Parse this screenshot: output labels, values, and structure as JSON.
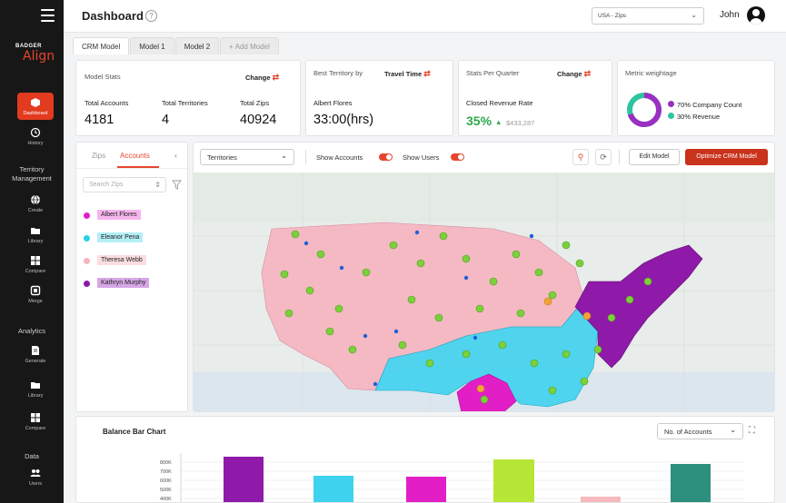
{
  "sidebar": {
    "brand_top": "BADGER",
    "brand_main": "Align",
    "items": [
      {
        "label": "Dashboard",
        "icon": "cube-icon"
      },
      {
        "label": "History",
        "icon": "history-icon"
      },
      {
        "label": "Create",
        "icon": "globe-icon"
      },
      {
        "label": "Library",
        "icon": "folder-icon"
      },
      {
        "label": "Compare",
        "icon": "grid-icon"
      },
      {
        "label": "Merge",
        "icon": "merge-icon"
      },
      {
        "label": "Generate",
        "icon": "document-icon"
      },
      {
        "label": "Library",
        "icon": "folder-icon"
      },
      {
        "label": "Compare",
        "icon": "grid-icon"
      },
      {
        "label": "Users",
        "icon": "users-icon"
      }
    ],
    "headings": {
      "territory": "Territory Management",
      "analytics": "Analytics",
      "data": "Data"
    }
  },
  "header": {
    "title": "Dashboard",
    "help": "?",
    "region": "USA - Zips",
    "user": "John"
  },
  "tabs": [
    "CRM Model",
    "Model 1",
    "Model 2",
    "+ Add Model"
  ],
  "model_stats": {
    "title": "Model Stats",
    "change": "Change",
    "accounts_label": "Total Accounts",
    "accounts": "4181",
    "territories_label": "Total Territories",
    "territories": "4",
    "zips_label": "Total Zips",
    "zips": "40924"
  },
  "best_territory": {
    "title": "Best Territory by",
    "metric": "Travel Time",
    "name": "Albert Flores",
    "value": "33:00(hrs)"
  },
  "quarter": {
    "title": "Stats Per Quarter",
    "change": "Change",
    "metric": "Closed Revenue Rate",
    "percent": "35%",
    "amount": "$433,287"
  },
  "weightage": {
    "title": "Metric weightage",
    "items": [
      {
        "label": "70% Company Count",
        "color": "#9b2fc2",
        "value": 70
      },
      {
        "label": "30% Revenue",
        "color": "#2ec4a0",
        "value": 30
      }
    ]
  },
  "left_panel": {
    "tab_zips": "Zips",
    "tab_accounts": "Accounts",
    "search_placeholder": "Search Zips",
    "reps": [
      {
        "name": "Albert Flores",
        "color": "#e21fc7",
        "bg": "#f6b6ee"
      },
      {
        "name": "Eleanor Pena",
        "color": "#29d0e8",
        "bg": "#b5eef7"
      },
      {
        "name": "Theresa Webb",
        "color": "#f6b6bd",
        "bg": "#fbdde0"
      },
      {
        "name": "Kathryn Murphy",
        "color": "#8a19a8",
        "bg": "#d6a6e6"
      }
    ]
  },
  "map_toolbar": {
    "select": "Territories",
    "show_accounts": "Show Accounts",
    "show_users": "Show Users",
    "edit": "Edit Model",
    "optimize": "Optimize CRM Model"
  },
  "chart_data": {
    "type": "bar",
    "title": "Balance Bar Chart",
    "metric_select": "No. of Accounts",
    "tick_labels": [
      "800K",
      "700K",
      "600K",
      "500K",
      "400K"
    ],
    "ylim": [
      300000,
      850000
    ],
    "bars": [
      {
        "value": 860000,
        "color": "#8f19a8"
      },
      {
        "value": 650000,
        "color": "#3fd2ee"
      },
      {
        "value": 640000,
        "color": "#e21fc7"
      },
      {
        "value": 830000,
        "color": "#b7e636"
      },
      {
        "value": 420000,
        "color": "#f8b9bc"
      },
      {
        "value": 780000,
        "color": "#2d8f7d"
      }
    ]
  }
}
